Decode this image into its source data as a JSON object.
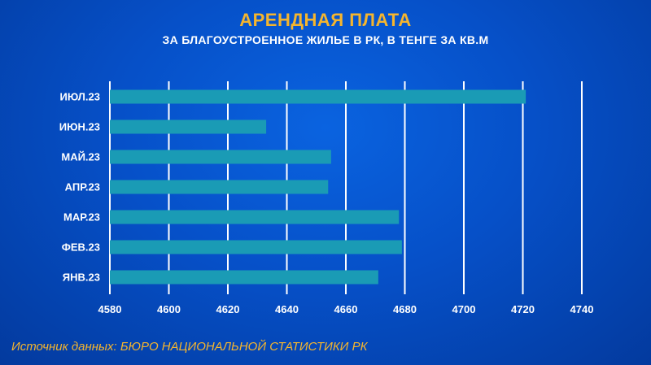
{
  "title": "АРЕНДНАЯ ПЛАТА",
  "subtitle": "ЗА БЛАГОУСТРОЕННОЕ ЖИЛЬЕ В РК, В ТЕНГЕ ЗА КВ.М",
  "source": "Источник данных: БЮРО НАЦИОНАЛЬНОЙ СТАТИСТИКИ РК",
  "colors": {
    "bar": "#1a9bb5",
    "grid": "#ffffff",
    "title": "#f5b52e",
    "text": "#ffffff"
  },
  "chart_data": {
    "type": "bar",
    "orientation": "horizontal",
    "title": "АРЕНДНАЯ ПЛАТА",
    "subtitle": "ЗА БЛАГОУСТРОЕННОЕ ЖИЛЬЕ В РК, В ТЕНГЕ ЗА КВ.М",
    "categories": [
      "ИЮЛ.23",
      "ИЮН.23",
      "МАЙ.23",
      "АПР.23",
      "МАР.23",
      "ФЕВ.23",
      "ЯНВ.23"
    ],
    "values": [
      4721,
      4633,
      4655,
      4654,
      4678,
      4679,
      4671
    ],
    "xlim": [
      4580,
      4740
    ],
    "xticks": [
      4580,
      4600,
      4620,
      4640,
      4660,
      4680,
      4700,
      4720,
      4740
    ],
    "grid": true
  }
}
